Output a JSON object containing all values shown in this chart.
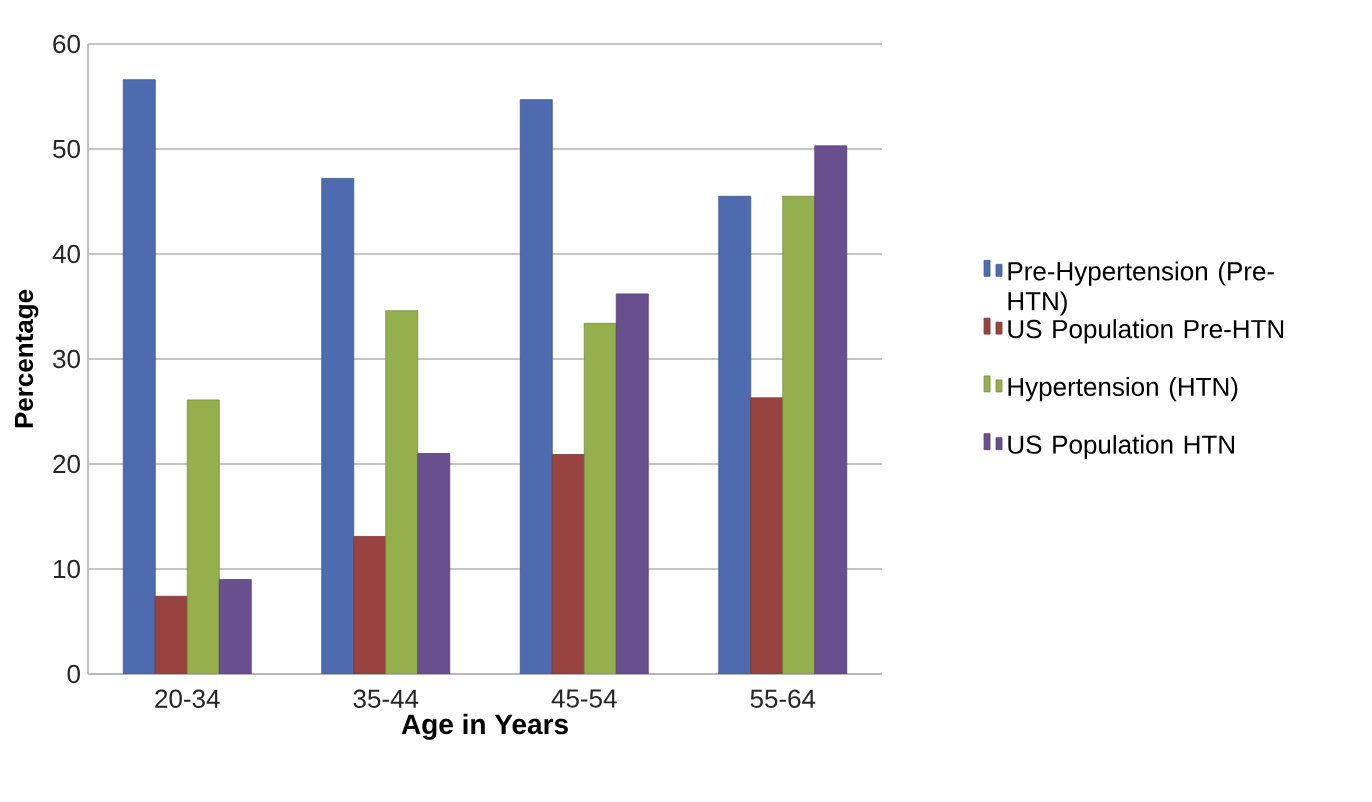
{
  "chart_data": {
    "type": "bar",
    "xlabel": "Age in Years",
    "ylabel": "Percentage",
    "categories": [
      "20-34",
      "35-44",
      "45-54",
      "55-64"
    ],
    "series": [
      {
        "name": "Pre-Hypertension (Pre-HTN)",
        "color": "#4f6bb0",
        "values": [
          56.6,
          47.2,
          54.7,
          45.5
        ]
      },
      {
        "name": "US Population Pre-HTN",
        "color": "#984340",
        "values": [
          7.4,
          13.1,
          20.9,
          26.3
        ]
      },
      {
        "name": "Hypertension (HTN)",
        "color": "#94b04c",
        "values": [
          26.1,
          34.6,
          33.4,
          45.5
        ]
      },
      {
        "name": "US Population HTN",
        "color": "#6a4f8e",
        "values": [
          9.0,
          21.0,
          36.2,
          50.3
        ]
      }
    ],
    "ylim": [
      0,
      60
    ],
    "yticks": [
      0,
      10,
      20,
      30,
      40,
      50,
      60
    ],
    "grid": "y",
    "legend": "right"
  }
}
